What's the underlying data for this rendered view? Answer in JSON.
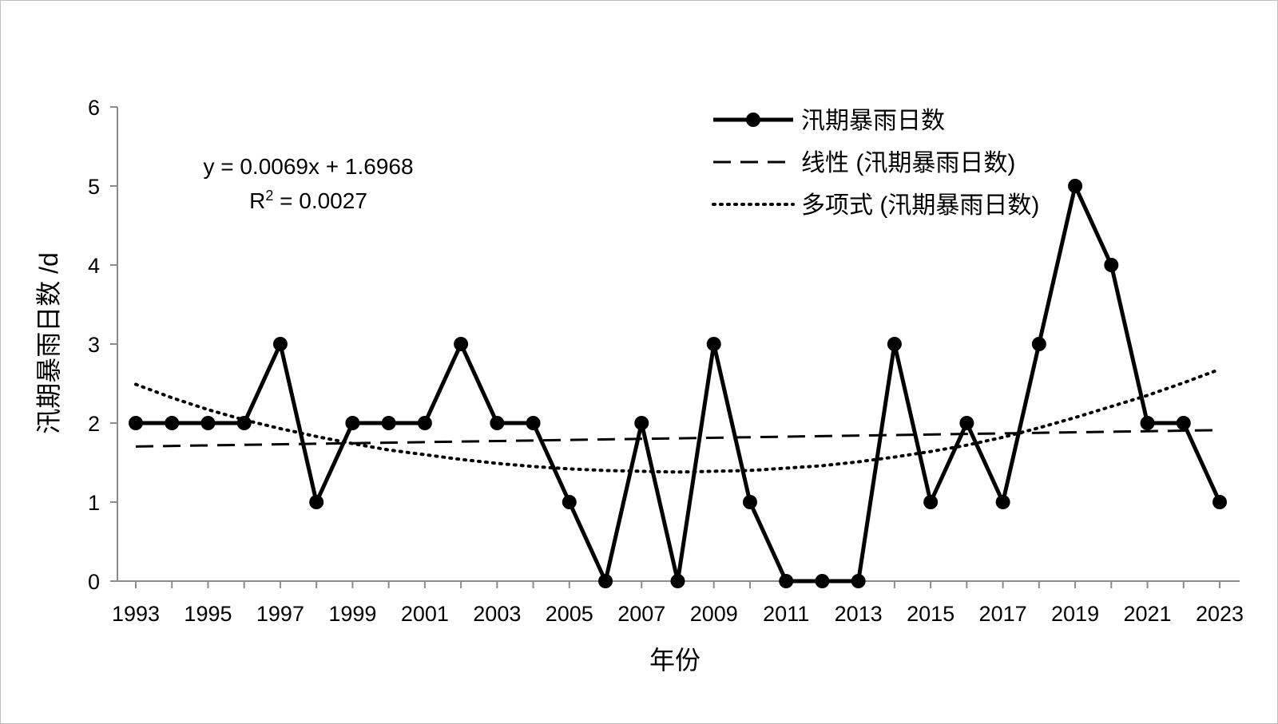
{
  "chart_data": {
    "type": "line",
    "title": "",
    "xlabel": "年份",
    "ylabel": "汛期暴雨日数 /d",
    "ylim": [
      0,
      6
    ],
    "yticks": [
      0,
      1,
      2,
      3,
      4,
      5,
      6
    ],
    "xticks": [
      "1993",
      "1995",
      "1997",
      "1999",
      "2001",
      "2003",
      "2005",
      "2007",
      "2009",
      "2011",
      "2013",
      "2015",
      "2017",
      "2019",
      "2021",
      "2023"
    ],
    "x": [
      1993,
      1994,
      1995,
      1996,
      1997,
      1998,
      1999,
      2000,
      2001,
      2002,
      2003,
      2004,
      2005,
      2006,
      2007,
      2008,
      2009,
      2010,
      2011,
      2012,
      2013,
      2014,
      2015,
      2016,
      2017,
      2018,
      2019,
      2020,
      2021,
      2022,
      2023
    ],
    "series": [
      {
        "name": "汛期暴雨日数",
        "style": "solid-marker",
        "values": [
          2,
          2,
          2,
          2,
          3,
          1,
          2,
          2,
          2,
          3,
          2,
          2,
          1,
          0,
          2,
          0,
          3,
          1,
          0,
          0,
          0,
          3,
          1,
          2,
          1,
          3,
          5,
          4,
          2,
          2,
          1
        ]
      },
      {
        "name": "线性 (汛期暴雨日数)",
        "style": "dashed",
        "equation": "y = 0.0069x + 1.6968",
        "slope": 0.0069,
        "intercept": 1.6968
      },
      {
        "name": "多项式 (汛期暴雨日数)",
        "style": "dotted",
        "values": [
          2.49,
          2.32,
          2.17,
          2.04,
          1.93,
          1.83,
          1.74,
          1.66,
          1.6,
          1.54,
          1.49,
          1.45,
          1.42,
          1.4,
          1.39,
          1.38,
          1.39,
          1.4,
          1.43,
          1.46,
          1.51,
          1.57,
          1.64,
          1.72,
          1.82,
          1.94,
          2.07,
          2.21,
          2.35,
          2.51,
          2.68
        ]
      }
    ],
    "equation_label": "y = 0.0069x + 1.6968",
    "r2_prefix": "R",
    "r2_exponent": "2",
    "r2_value": " = 0.0027",
    "legend_position": "top-right",
    "colors": {
      "line": "#000000",
      "axis": "#8c8c8c",
      "frame": "#bfbfbf"
    }
  }
}
